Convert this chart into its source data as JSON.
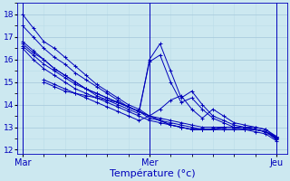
{
  "xlabel": "Température (°c)",
  "x_ticks": [
    0,
    24,
    48
  ],
  "x_tick_labels": [
    "Mar",
    "Mer",
    "Jeu"
  ],
  "ylim": [
    11.8,
    18.5
  ],
  "xlim": [
    -1,
    50
  ],
  "yticks": [
    12,
    13,
    14,
    15,
    16,
    17,
    18
  ],
  "bg_color": "#cce8f0",
  "line_color": "#0000bb",
  "grid_major_color": "#aaccdd",
  "grid_minor_color": "#bbdde8",
  "series": [
    {
      "x": [
        0,
        2,
        4,
        6,
        8,
        10,
        12,
        14,
        16,
        18,
        20,
        22,
        24,
        26,
        28,
        30,
        32,
        34,
        36,
        38,
        40,
        42,
        44,
        46,
        48
      ],
      "y": [
        18.0,
        17.4,
        16.8,
        16.5,
        16.1,
        15.7,
        15.3,
        14.9,
        14.6,
        14.3,
        14.0,
        13.8,
        13.5,
        13.3,
        13.1,
        13.0,
        12.9,
        12.9,
        12.9,
        13.0,
        13.0,
        13.0,
        12.9,
        12.8,
        12.6
      ]
    },
    {
      "x": [
        0,
        2,
        4,
        6,
        8,
        10,
        12,
        14,
        16,
        18,
        20,
        22,
        24,
        26,
        28,
        30,
        32,
        34,
        36,
        38,
        40,
        42,
        44,
        46,
        48
      ],
      "y": [
        17.5,
        17.0,
        16.5,
        16.1,
        15.8,
        15.4,
        15.1,
        14.8,
        14.5,
        14.2,
        13.9,
        13.7,
        13.4,
        13.3,
        13.1,
        13.0,
        12.9,
        12.9,
        12.9,
        13.0,
        13.0,
        13.0,
        12.9,
        12.8,
        12.55
      ]
    },
    {
      "x": [
        0,
        2,
        4,
        6,
        8,
        10,
        12,
        14,
        16,
        18,
        20,
        22,
        24,
        26,
        28,
        30,
        32,
        34,
        36,
        38,
        40,
        42,
        44,
        46,
        48
      ],
      "y": [
        16.7,
        16.3,
        16.0,
        15.6,
        15.3,
        15.0,
        14.7,
        14.5,
        14.3,
        14.1,
        13.9,
        13.7,
        13.5,
        13.3,
        13.2,
        13.1,
        13.0,
        12.9,
        12.9,
        12.9,
        12.9,
        12.9,
        12.9,
        12.8,
        12.5
      ]
    },
    {
      "x": [
        0,
        2,
        4,
        6,
        8,
        10,
        12,
        14,
        16,
        18,
        20,
        22,
        24,
        26,
        28,
        30,
        32,
        34,
        36,
        38,
        40,
        42,
        44,
        46,
        48
      ],
      "y": [
        16.5,
        16.0,
        15.6,
        15.3,
        15.0,
        14.7,
        14.5,
        14.3,
        14.1,
        13.9,
        13.7,
        13.5,
        13.3,
        13.2,
        13.1,
        13.0,
        12.9,
        12.9,
        12.9,
        12.9,
        12.9,
        12.9,
        12.9,
        12.8,
        12.5
      ]
    },
    {
      "x": [
        4,
        6,
        8,
        10,
        12,
        14,
        16,
        18,
        20,
        22,
        24,
        26,
        28,
        30,
        32,
        34,
        36,
        38,
        40,
        42,
        44,
        46,
        48
      ],
      "y": [
        15.0,
        14.8,
        14.6,
        14.5,
        14.4,
        14.3,
        14.2,
        14.1,
        13.9,
        13.7,
        13.5,
        13.4,
        13.3,
        13.2,
        13.1,
        13.0,
        13.0,
        13.0,
        13.0,
        13.0,
        13.0,
        12.9,
        12.6
      ]
    },
    {
      "x": [
        4,
        6,
        8,
        10,
        12,
        14,
        16,
        18,
        20,
        22,
        24,
        26,
        28,
        30,
        32,
        34,
        36,
        38,
        40,
        42,
        44,
        46,
        48
      ],
      "y": [
        15.1,
        14.9,
        14.7,
        14.5,
        14.3,
        14.1,
        13.9,
        13.7,
        13.5,
        13.3,
        13.5,
        13.8,
        14.2,
        14.4,
        13.8,
        13.4,
        13.8,
        13.5,
        13.2,
        13.1,
        13.0,
        12.9,
        12.55
      ]
    },
    {
      "x": [
        0,
        2,
        4,
        6,
        8,
        10,
        12,
        14,
        16,
        18,
        20,
        22,
        24,
        26,
        28,
        30,
        32,
        34,
        36,
        38,
        40,
        42,
        44,
        46,
        48
      ],
      "y": [
        16.8,
        16.4,
        16.0,
        15.6,
        15.3,
        15.0,
        14.7,
        14.4,
        14.2,
        14.0,
        13.8,
        13.6,
        16.0,
        16.7,
        15.5,
        14.3,
        14.6,
        14.0,
        13.5,
        13.3,
        13.1,
        13.0,
        12.9,
        12.8,
        12.45
      ]
    },
    {
      "x": [
        0,
        2,
        4,
        6,
        8,
        10,
        12,
        14,
        16,
        18,
        20,
        22,
        24,
        26,
        28,
        30,
        32,
        34,
        36,
        38,
        40,
        42,
        44,
        46,
        48
      ],
      "y": [
        16.6,
        16.2,
        15.8,
        15.5,
        15.2,
        14.9,
        14.7,
        14.5,
        14.3,
        14.1,
        13.9,
        13.7,
        15.9,
        16.2,
        15.0,
        14.1,
        14.3,
        13.8,
        13.4,
        13.2,
        13.0,
        12.9,
        12.8,
        12.7,
        12.4
      ]
    }
  ]
}
